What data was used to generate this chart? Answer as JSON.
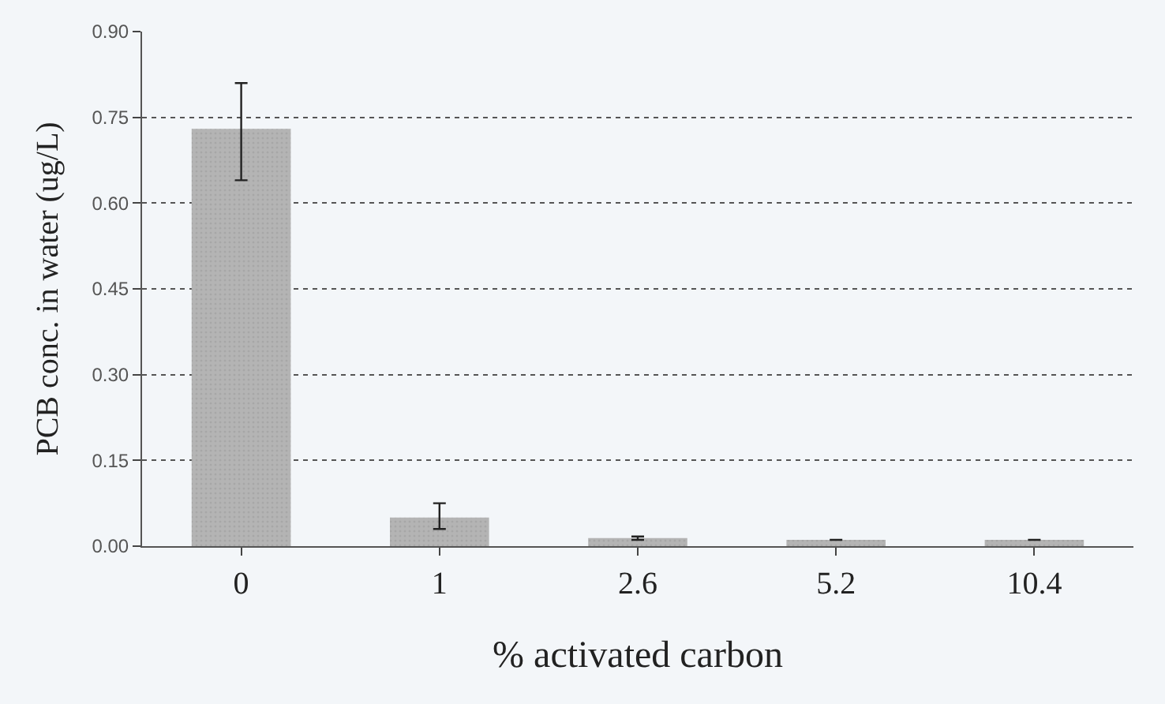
{
  "chart_data": {
    "type": "bar",
    "xlabel": "% activated carbon",
    "ylabel": "PCB conc. in water (ug/L)",
    "categories": [
      "0",
      "1",
      "2.6",
      "5.2",
      "10.4"
    ],
    "values": [
      0.73,
      0.05,
      0.014,
      0.011,
      0.011
    ],
    "errors": [
      [
        0.64,
        0.81
      ],
      [
        0.03,
        0.075
      ],
      [
        0.011,
        0.017
      ],
      null,
      null
    ],
    "color": "#b4b4b4",
    "ylim": [
      0,
      0.9
    ],
    "yticks": [
      {
        "value": 0,
        "label": "0.00"
      },
      {
        "value": 0.15,
        "label": "0.15"
      },
      {
        "value": 0.3,
        "label": "0.30"
      },
      {
        "value": 0.45,
        "label": "0.45"
      },
      {
        "value": 0.6,
        "label": "0.60"
      },
      {
        "value": 0.75,
        "label": "0.75"
      },
      {
        "value": 0.9,
        "label": "0.90"
      }
    ],
    "grid": "y",
    "legend": false
  }
}
